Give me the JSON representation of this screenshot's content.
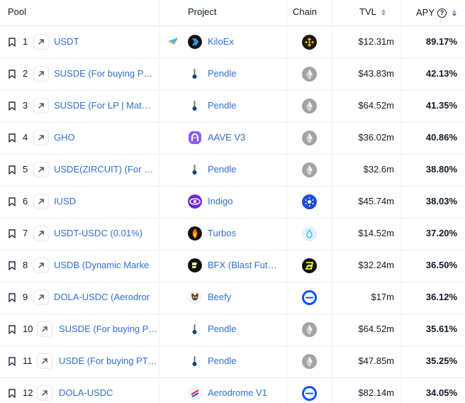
{
  "header": {
    "pool": "Pool",
    "project": "Project",
    "chain": "Chain",
    "tvl": "TVL",
    "apy": "APY"
  },
  "colors": {
    "link": "#2f6fd1",
    "sort_active": "#2f6fd1"
  },
  "rows": [
    {
      "rank": "1",
      "pool": "USDT",
      "project": "KiloEx",
      "project_icon": "kiloex-icon",
      "chain_icon": "bnb-chain-icon",
      "tvl": "$12.31m",
      "apy": "89.17%"
    },
    {
      "rank": "2",
      "pool": "SUSDE (For buying P…",
      "project": "Pendle",
      "project_icon": "pendle-icon",
      "chain_icon": "ethereum-icon",
      "tvl": "$43.83m",
      "apy": "42.13%"
    },
    {
      "rank": "3",
      "pool": "SUSDE (For LP | Mat…",
      "project": "Pendle",
      "project_icon": "pendle-icon",
      "chain_icon": "ethereum-icon",
      "tvl": "$64.52m",
      "apy": "41.35%"
    },
    {
      "rank": "4",
      "pool": "GHO",
      "project": "AAVE V3",
      "project_icon": "aave-icon",
      "chain_icon": "ethereum-icon",
      "tvl": "$36.02m",
      "apy": "40.86%"
    },
    {
      "rank": "5",
      "pool": "USDE(ZIRCUIT) (For …",
      "project": "Pendle",
      "project_icon": "pendle-icon",
      "chain_icon": "ethereum-icon",
      "tvl": "$32.6m",
      "apy": "38.80%"
    },
    {
      "rank": "6",
      "pool": "IUSD",
      "project": "Indigo",
      "project_icon": "indigo-icon",
      "chain_icon": "cardano-icon",
      "tvl": "$45.74m",
      "apy": "38.03%"
    },
    {
      "rank": "7",
      "pool": "USDT-USDC (0.01%)",
      "project": "Turbos",
      "project_icon": "turbos-icon",
      "chain_icon": "sui-icon",
      "tvl": "$14.52m",
      "apy": "37.20%"
    },
    {
      "rank": "8",
      "pool": "USDB (Dynamic Marke",
      "project": "BFX (Blast Fut…",
      "project_icon": "bfx-icon",
      "chain_icon": "blast-icon",
      "tvl": "$32.24m",
      "apy": "36.50%"
    },
    {
      "rank": "9",
      "pool": "DOLA-USDC (Aerodror",
      "project": "Beefy",
      "project_icon": "beefy-icon",
      "chain_icon": "base-icon",
      "tvl": "$17m",
      "apy": "36.12%"
    },
    {
      "rank": "10",
      "pool": "SUSDE (For buying P…",
      "project": "Pendle",
      "project_icon": "pendle-icon",
      "chain_icon": "ethereum-icon",
      "tvl": "$64.52m",
      "apy": "35.61%"
    },
    {
      "rank": "11",
      "pool": "USDE (For buying PT…",
      "project": "Pendle",
      "project_icon": "pendle-icon",
      "chain_icon": "ethereum-icon",
      "tvl": "$47.85m",
      "apy": "35.25%"
    },
    {
      "rank": "12",
      "pool": "DOLA-USDC",
      "project": "Aerodrome V1",
      "project_icon": "aerodrome-icon",
      "chain_icon": "base-icon",
      "tvl": "$82.14m",
      "apy": "34.05%"
    }
  ]
}
